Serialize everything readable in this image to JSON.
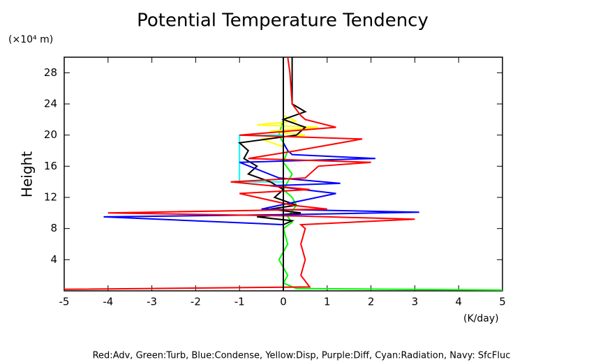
{
  "chart_data": {
    "type": "line",
    "title": "Potential Temperature Tendency",
    "y_label": "Height",
    "y_unit": "(×10⁴ m)",
    "x_unit": "(K/day)",
    "footnote": "Red:Adv, Green:Turb, Blue:Condense, Yellow:Disp, Purple:Diff, Cyan:Radiation, Navy: SfcFluc",
    "xlim": [
      -5,
      5
    ],
    "ylim": [
      0,
      30
    ],
    "xticks": [
      -5,
      -4,
      -3,
      -2,
      -1,
      0,
      1,
      2,
      3,
      4,
      5
    ],
    "yticks": [
      4,
      8,
      12,
      16,
      20,
      24,
      28
    ],
    "series": [
      {
        "color": "#00ff00",
        "x": [
          5,
          0.3,
          0,
          0.1,
          -0.1,
          0.1,
          0,
          0.2,
          0.1,
          0.3,
          0.2,
          0,
          0.1,
          0.2,
          0,
          0.1,
          0,
          -0.1,
          0,
          0
        ],
        "y": [
          0.1,
          0.3,
          1,
          2,
          4,
          6,
          8,
          8.8,
          9.5,
          11,
          12,
          13,
          14,
          15,
          16.5,
          18,
          19,
          20,
          22,
          30
        ]
      },
      {
        "color": "#ffff00",
        "x": [
          0,
          0,
          0,
          -0.5,
          0.5,
          -0.3,
          0.8,
          -0.6,
          0.3,
          0,
          0
        ],
        "y": [
          0,
          17.5,
          18.5,
          19.5,
          20,
          20.5,
          21,
          21.3,
          21.8,
          22.5,
          30
        ]
      },
      {
        "color": "#00ffff",
        "x": [
          0,
          0,
          -1,
          -1,
          0,
          0
        ],
        "y": [
          0,
          14,
          14,
          20,
          20,
          30
        ]
      },
      {
        "color": "#000000",
        "x": [
          0,
          0,
          0,
          0.2,
          -0.6,
          0.4,
          -0.3,
          0.3,
          -0.2,
          0,
          -0.3,
          -0.8,
          -0.6,
          -0.9,
          -0.8,
          -1.0,
          0.3,
          0.5,
          0,
          0.5,
          0.2,
          0.2,
          0.2
        ],
        "y": [
          0,
          4,
          8.5,
          9,
          9.5,
          10,
          10.5,
          11,
          12,
          13,
          14,
          15,
          16,
          17,
          18,
          19,
          20,
          21,
          22,
          23,
          24,
          26,
          30
        ]
      },
      {
        "color": "#0000ff",
        "x": [
          0,
          0,
          0,
          -4.1,
          0.2,
          3.1,
          -0.5,
          1.2,
          -0.3,
          1.3,
          -0.1,
          -1.0,
          2.1,
          0.2,
          0.1,
          0,
          0
        ],
        "y": [
          0,
          4,
          8.5,
          9.5,
          9.8,
          10.1,
          10.5,
          12.5,
          13.5,
          13.8,
          14.5,
          16.5,
          17,
          17.5,
          18,
          19,
          30
        ]
      },
      {
        "color": "#ff0000",
        "x": [
          -5,
          0.6,
          0.4,
          0.5,
          0.4,
          0.5,
          0.4,
          3.0,
          0.4,
          -4.0,
          1.0,
          0.2,
          -1.0,
          0.6,
          -1.2,
          0.5,
          0.8,
          2.0,
          -0.8,
          0.3,
          1.8,
          -1.0,
          1.2,
          0.5,
          0.4,
          0.2,
          0.15,
          0.1
        ],
        "y": [
          0.2,
          0.5,
          2,
          4,
          6,
          8,
          8.5,
          9.2,
          9.6,
          10,
          10.5,
          11,
          12.5,
          13,
          14,
          14.5,
          16,
          16.5,
          17,
          18,
          19.5,
          20,
          21,
          22,
          22.5,
          24,
          28,
          30
        ]
      }
    ]
  }
}
